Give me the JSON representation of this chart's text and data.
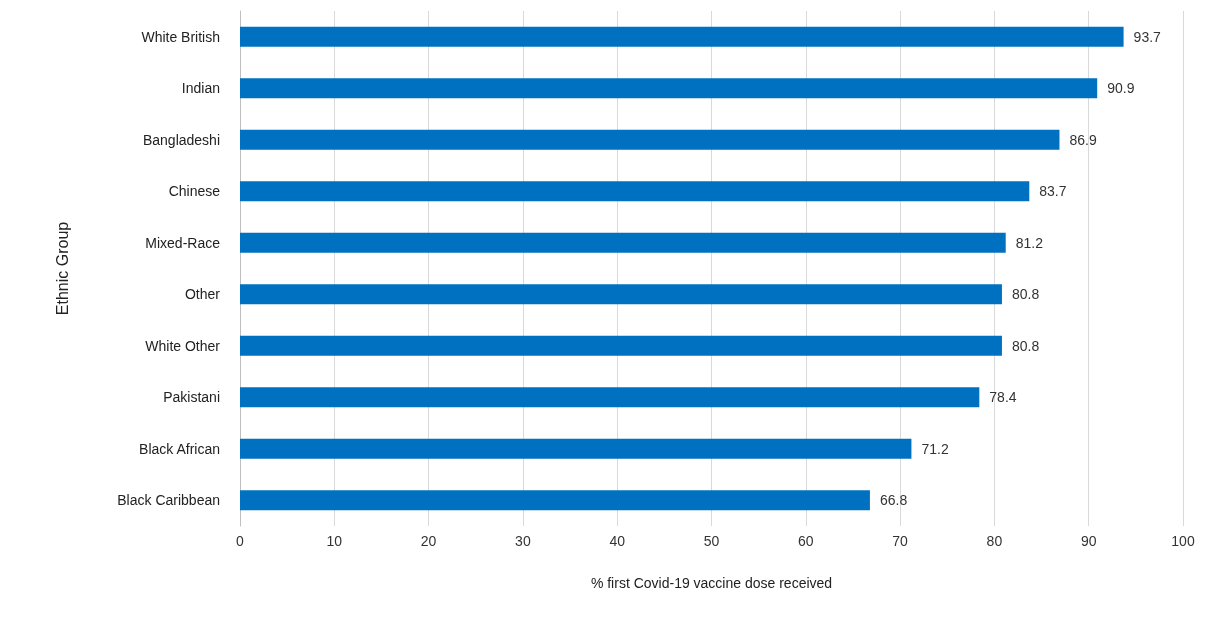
{
  "chart_data": {
    "type": "bar",
    "orientation": "horizontal",
    "xlabel": "% first Covid-19 vaccine dose received",
    "ylabel": "Ethnic Group",
    "categories": [
      "White British",
      "Indian",
      "Bangladeshi",
      "Chinese",
      "Mixed-Race",
      "Other",
      "White Other",
      "Pakistani",
      "Black African",
      "Black Caribbean"
    ],
    "values": [
      93.7,
      90.9,
      86.9,
      83.7,
      81.2,
      80.8,
      80.8,
      78.4,
      71.2,
      66.8
    ],
    "color": "#0070c0",
    "xlim": [
      0,
      100
    ],
    "xticks": [
      0,
      10,
      20,
      30,
      40,
      50,
      60,
      70,
      80,
      90,
      100
    ],
    "grid": "x",
    "data_labels": true
  }
}
